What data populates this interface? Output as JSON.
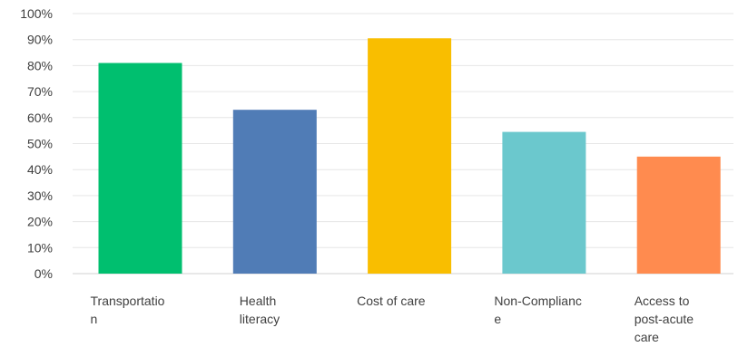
{
  "chart_data": {
    "type": "bar",
    "categories": [
      [
        "Transportatio",
        "n"
      ],
      [
        "Health",
        "literacy"
      ],
      [
        "Cost of care"
      ],
      [
        "Non-Complianc",
        "e"
      ],
      [
        "Access to",
        "post-acute",
        "care"
      ]
    ],
    "values": [
      81,
      63,
      90.5,
      54.5,
      45
    ],
    "colors": [
      "#00bf6f",
      "#507cb6",
      "#f9be00",
      "#6bc8cd",
      "#ff8b4f"
    ],
    "ylim": [
      0,
      100
    ],
    "yticks": [
      "0%",
      "10%",
      "20%",
      "30%",
      "40%",
      "50%",
      "60%",
      "70%",
      "80%",
      "90%",
      "100%"
    ],
    "grid": true,
    "legend": "none"
  }
}
